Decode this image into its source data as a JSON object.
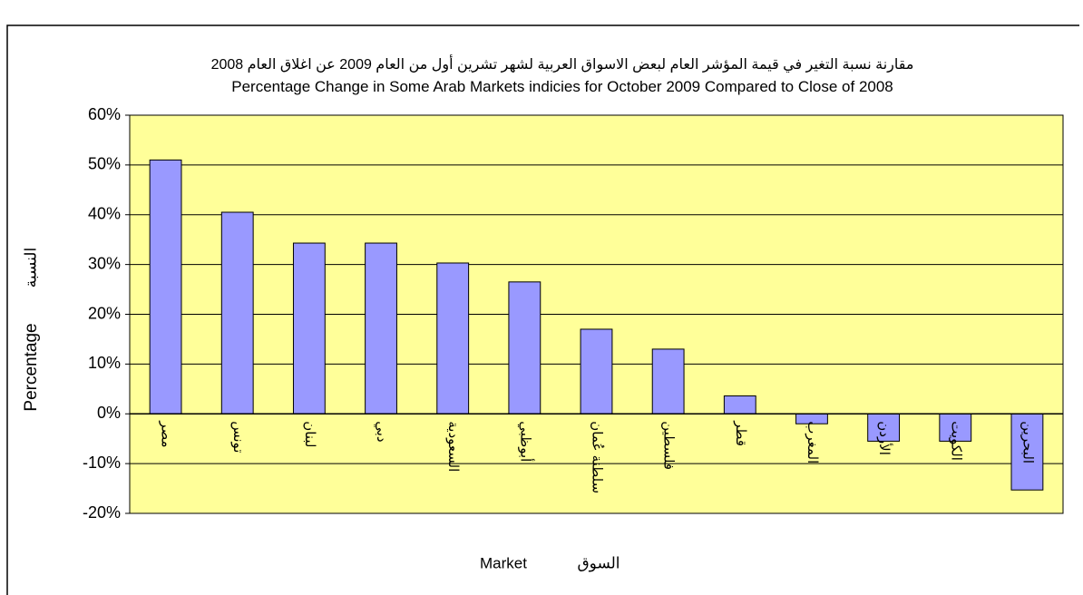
{
  "chart_data": {
    "type": "bar",
    "title": "مقارنة نسبة التغير في قيمة المؤشر العام لبعض الاسواق العربية لشهر تشرين أول من العام 2009 عن اغلاق العام 2008",
    "subtitle": "Percentage Change in Some Arab Markets indicies for October 2009 Compared to Close of 2008",
    "y_label": "Percentage",
    "y_label_ar": "النسبة",
    "x_label": "Market",
    "x_label_ar": "السوق",
    "categories": [
      "مصر",
      "تونس",
      "لبنان",
      "دبي",
      "السعودية",
      "أبوظبي",
      "سلطنة عُمان",
      "فلسطين",
      "قطر",
      "المغرب",
      "الأردن",
      "الكويت",
      "البحرين"
    ],
    "values": [
      51,
      40.5,
      34.3,
      34.3,
      30.3,
      26.5,
      17,
      13,
      3.6,
      -2,
      -5.5,
      -5.5,
      -15.3
    ],
    "color": "#9999ff",
    "plot_background": "#ffff99",
    "ylim": [
      -20,
      60
    ],
    "yticks": [
      {
        "value": -20,
        "label": "-20%"
      },
      {
        "value": -10,
        "label": "-10%"
      },
      {
        "value": 0,
        "label": "0%"
      },
      {
        "value": 10,
        "label": "10%"
      },
      {
        "value": 20,
        "label": "20%"
      },
      {
        "value": 30,
        "label": "30%"
      },
      {
        "value": 40,
        "label": "40%"
      },
      {
        "value": 50,
        "label": "50%"
      },
      {
        "value": 60,
        "label": "60%"
      }
    ],
    "grid": true
  }
}
